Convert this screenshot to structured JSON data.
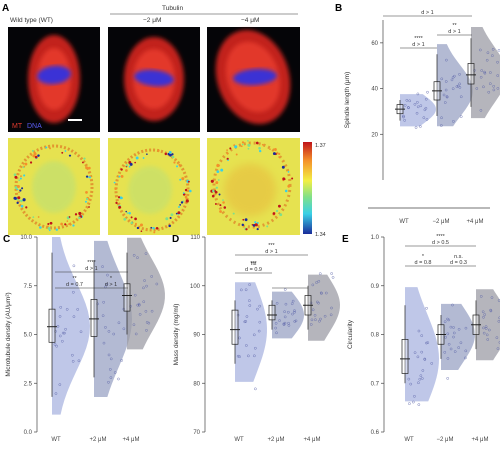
{
  "panel_a": {
    "label": "A",
    "col_titles": [
      "Wild type (WT)",
      "−2 μM",
      "−4 μM"
    ],
    "tubulin_label": "Tubulin",
    "legend_mt": "MT",
    "legend_dna": "DNA",
    "colorbar_max": "1.37",
    "colorbar_min": "1.34"
  },
  "chart_data": [
    {
      "panel": "B",
      "type": "scatter",
      "ylabel": "Spindle length (μm)",
      "categories": [
        "WT",
        "−2 μM",
        "+4 μM"
      ],
      "ylim": [
        0,
        70
      ],
      "yticks": [
        20,
        40,
        60
      ],
      "medians": [
        31,
        39,
        46
      ],
      "box_q1": [
        29,
        35,
        42
      ],
      "box_q3": [
        33,
        43,
        51
      ],
      "whisker_low": [
        26,
        28,
        32
      ],
      "whisker_high": [
        35,
        55,
        62
      ],
      "annotations": [
        "d > 1",
        "****",
        "d > 1",
        "**",
        "d > 1"
      ]
    },
    {
      "panel": "C",
      "type": "scatter",
      "ylabel": "Microtubule density (AU/μm²)",
      "categories": [
        "WT",
        "+2 μM",
        "+4 μM"
      ],
      "ylim": [
        0,
        10
      ],
      "yticks": [
        "0.0",
        "2.5",
        "5.0",
        "7.5",
        "10.0"
      ],
      "medians": [
        5.4,
        5.8,
        7.0
      ],
      "box_q1": [
        4.6,
        4.9,
        6.2
      ],
      "box_q3": [
        6.3,
        6.8,
        7.6
      ],
      "whisker_low": [
        1.8,
        2.8,
        5.0
      ],
      "whisker_high": [
        9.2,
        8.8,
        9.2
      ],
      "annotations": [
        "****",
        "d > 1",
        "**",
        "d = 0.7",
        "*",
        "d > 1"
      ]
    },
    {
      "panel": "D",
      "type": "scatter",
      "ylabel": "Mass density (mg/ml)",
      "categories": [
        "WT",
        "+2 μM",
        "+4 μM"
      ],
      "ylim": [
        70,
        110
      ],
      "yticks": [
        70,
        80,
        90,
        100,
        110
      ],
      "medians": [
        91,
        94,
        96
      ],
      "box_q1": [
        88,
        93,
        94
      ],
      "box_q3": [
        95,
        96,
        98
      ],
      "whisker_low": [
        84,
        91,
        91
      ],
      "whisker_high": [
        97,
        97,
        100
      ],
      "annotations": [
        "***",
        "d > 1",
        "ns",
        "***",
        "d = 0.9"
      ]
    },
    {
      "panel": "E",
      "type": "scatter",
      "ylabel": "Circularity",
      "categories": [
        "WT",
        "−2 μM",
        "+4 μM"
      ],
      "ylim": [
        0.6,
        1.0
      ],
      "yticks": [
        "0.6",
        "0.7",
        "0.8",
        "0.9",
        "1.0"
      ],
      "medians": [
        0.75,
        0.8,
        0.82
      ],
      "box_q1": [
        0.72,
        0.78,
        0.8
      ],
      "box_q3": [
        0.79,
        0.82,
        0.84
      ],
      "whisker_low": [
        0.7,
        0.75,
        0.77
      ],
      "whisker_high": [
        0.86,
        0.84,
        0.87
      ],
      "annotations": [
        "****",
        "d > 0.5",
        "*",
        "d = 0.8",
        "n.s.",
        "d = 0.3"
      ]
    }
  ],
  "colors": {
    "wt": "#aab4e0",
    "mid": "#9aa3c4",
    "high": "#9c9ca6",
    "mt": "#d8281c",
    "dna": "#2e2fd0"
  }
}
